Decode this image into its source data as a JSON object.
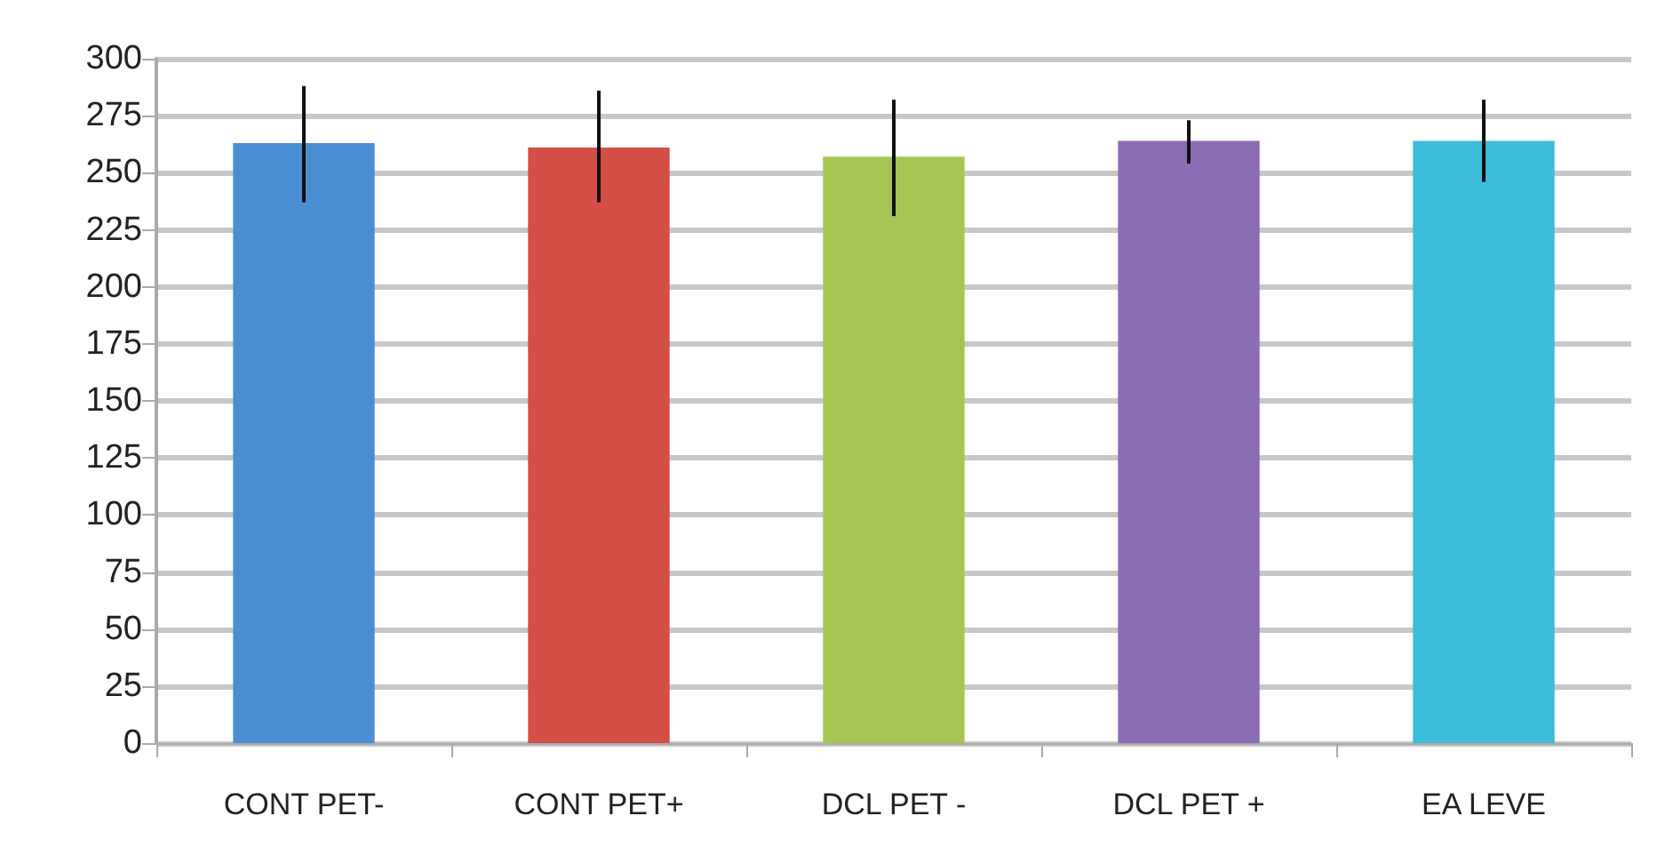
{
  "chart_data": {
    "type": "bar",
    "categories": [
      "CONT PET-",
      "CONT PET+",
      "DCL PET -",
      "DCL PET +",
      "EA LEVE"
    ],
    "values": [
      263,
      261,
      257,
      264,
      264
    ],
    "colors": [
      "#4a8fd4",
      "#d44f45",
      "#a5c653",
      "#8b6db4",
      "#3bbcd8"
    ],
    "errors": [
      [
        237,
        288
      ],
      [
        237,
        286
      ],
      [
        231,
        282
      ],
      [
        254,
        273
      ],
      [
        246,
        282
      ]
    ],
    "ylim": [
      0,
      300
    ],
    "yticks": [
      0,
      25,
      50,
      75,
      100,
      125,
      150,
      175,
      200,
      225,
      250,
      275,
      300
    ],
    "grid": "y"
  }
}
